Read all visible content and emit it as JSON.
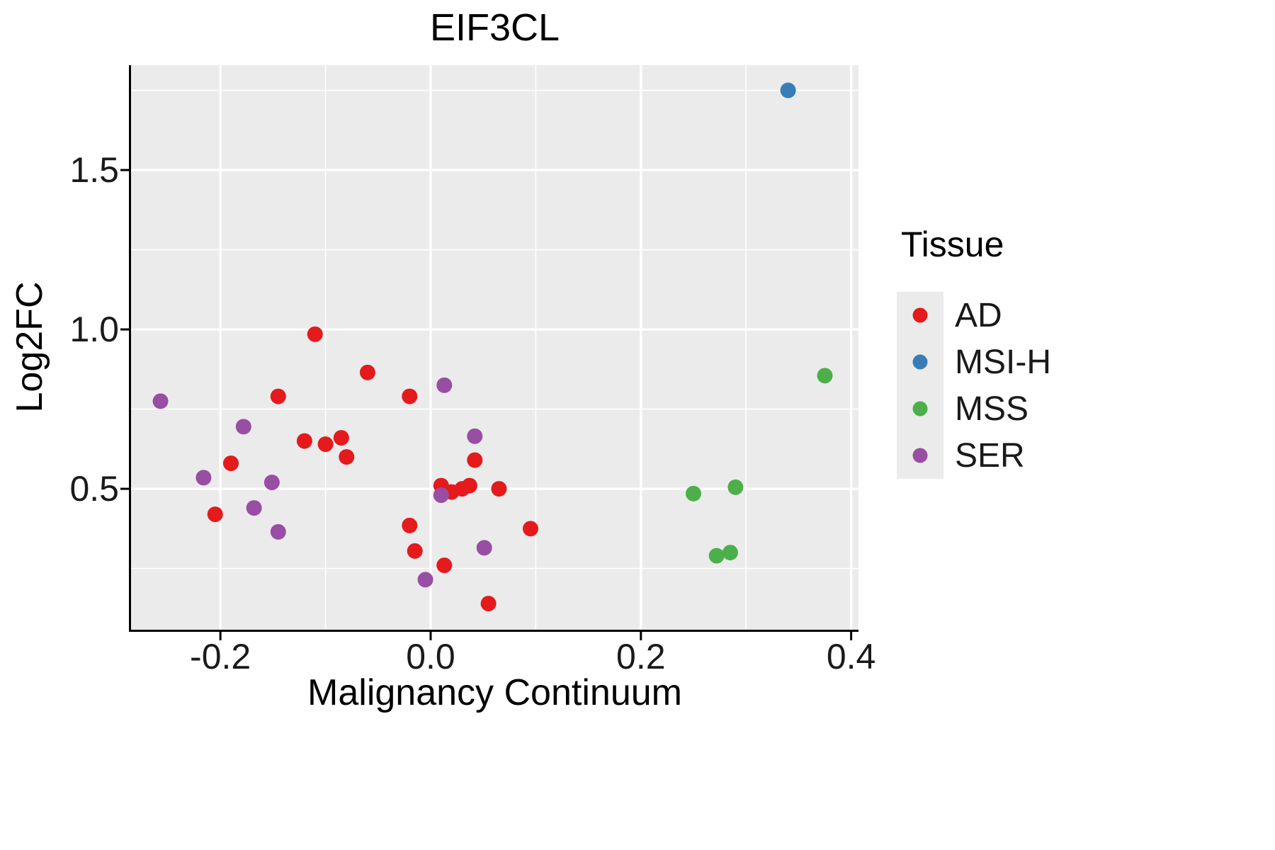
{
  "chart_data": {
    "type": "scatter",
    "title": "EIF3CL",
    "xlabel": "Malignancy Continuum",
    "ylabel": "Log2FC",
    "xlim": [
      -0.285,
      0.407
    ],
    "ylim": [
      0.058,
      1.829
    ],
    "panel_bg": "#EBEBEB",
    "grid_color": "#FFFFFF",
    "axis_color": "#000000",
    "grid": true,
    "xticks": {
      "values": [
        -0.2,
        0.0,
        0.2,
        0.4
      ],
      "labels": [
        "-0.2",
        "0.0",
        "0.2",
        "0.4"
      ]
    },
    "yticks": {
      "values": [
        0.5,
        1.0,
        1.5
      ],
      "labels": [
        "0.5",
        "1.0",
        "1.5"
      ]
    },
    "xminor": [
      -0.1,
      0.1,
      0.3
    ],
    "yminor": [
      0.25,
      0.75,
      1.25,
      1.75
    ],
    "legend": {
      "title": "Tissue",
      "position": "right"
    },
    "series": [
      {
        "name": "AD",
        "color": "#E41A1C",
        "points": [
          [
            -0.205,
            0.42
          ],
          [
            -0.19,
            0.58
          ],
          [
            -0.145,
            0.79
          ],
          [
            -0.12,
            0.65
          ],
          [
            -0.11,
            0.985
          ],
          [
            -0.1,
            0.64
          ],
          [
            -0.085,
            0.66
          ],
          [
            -0.08,
            0.6
          ],
          [
            -0.06,
            0.865
          ],
          [
            -0.02,
            0.79
          ],
          [
            -0.02,
            0.385
          ],
          [
            -0.015,
            0.305
          ],
          [
            0.01,
            0.51
          ],
          [
            0.013,
            0.26
          ],
          [
            0.02,
            0.49
          ],
          [
            0.03,
            0.5
          ],
          [
            0.037,
            0.51
          ],
          [
            0.042,
            0.59
          ],
          [
            0.055,
            0.14
          ],
          [
            0.065,
            0.5
          ],
          [
            0.095,
            0.375
          ]
        ]
      },
      {
        "name": "MSI-H",
        "color": "#377EB8",
        "points": [
          [
            0.34,
            1.75
          ]
        ]
      },
      {
        "name": "MSS",
        "color": "#4DAF4A",
        "points": [
          [
            0.25,
            0.485
          ],
          [
            0.272,
            0.29
          ],
          [
            0.285,
            0.3
          ],
          [
            0.29,
            0.505
          ],
          [
            0.375,
            0.855
          ]
        ]
      },
      {
        "name": "SER",
        "color": "#984EA3",
        "points": [
          [
            -0.257,
            0.775
          ],
          [
            -0.216,
            0.535
          ],
          [
            -0.178,
            0.695
          ],
          [
            -0.168,
            0.44
          ],
          [
            -0.151,
            0.52
          ],
          [
            -0.145,
            0.365
          ],
          [
            -0.005,
            0.215
          ],
          [
            0.01,
            0.48
          ],
          [
            0.013,
            0.825
          ],
          [
            0.042,
            0.665
          ],
          [
            0.051,
            0.315
          ]
        ]
      }
    ]
  }
}
